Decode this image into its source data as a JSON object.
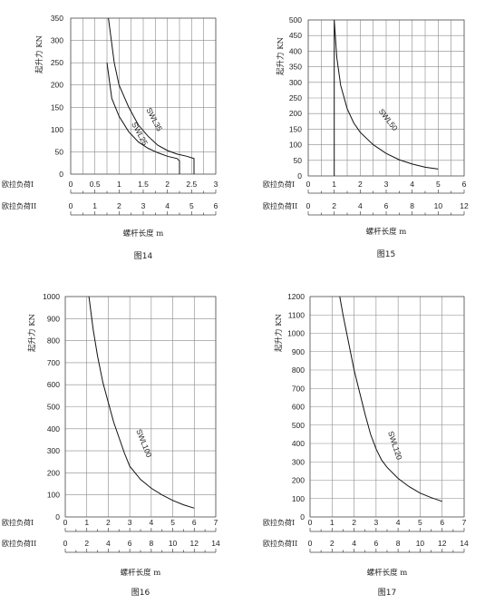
{
  "chart_data": [
    {
      "type": "line",
      "caption": "图14",
      "ylabel": "起升力 KN",
      "xlabel": "螺杆长度  m",
      "axis1_label": "欧拉负荷I",
      "axis2_label": "欧拉负荷II",
      "ylim": [
        0,
        350
      ],
      "yticks": [
        "0",
        "50",
        "100",
        "150",
        "200",
        "250",
        "300",
        "350"
      ],
      "xlim": [
        0,
        3
      ],
      "axis1_ticks": [
        "0",
        "0.5",
        "1",
        "1.5",
        "2",
        "2.5",
        "3"
      ],
      "axis2_ticks": [
        "0",
        "1",
        "2",
        "3",
        "4",
        "5",
        "6"
      ],
      "grid": true,
      "series": [
        {
          "name": "SWL25",
          "x": [
            0.75,
            0.85,
            1.0,
            1.2,
            1.4,
            1.6,
            1.8,
            2.0,
            2.2,
            2.25,
            2.25
          ],
          "y": [
            250,
            170,
            130,
            95,
            72,
            58,
            48,
            40,
            35,
            30,
            0
          ]
        },
        {
          "name": "SWL35",
          "x": [
            0.78,
            0.9,
            1.0,
            1.2,
            1.4,
            1.6,
            1.8,
            2.0,
            2.2,
            2.4,
            2.55,
            2.55
          ],
          "y": [
            350,
            250,
            200,
            150,
            110,
            85,
            65,
            53,
            45,
            40,
            35,
            0
          ]
        }
      ]
    },
    {
      "type": "line",
      "caption": "图15",
      "ylabel": "起升力 KN",
      "xlabel": "螺杆长度  m",
      "axis1_label": "欧拉负荷I",
      "axis2_label": "欧拉负荷II",
      "ylim": [
        0,
        500
      ],
      "yticks": [
        "0",
        "50",
        "100",
        "150",
        "200",
        "250",
        "300",
        "350",
        "400",
        "450",
        "500"
      ],
      "xlim": [
        0,
        6
      ],
      "axis1_ticks": [
        "0",
        "1",
        "2",
        "3",
        "4",
        "5",
        "6"
      ],
      "axis2_ticks": [
        "0",
        "2",
        "4",
        "6",
        "8",
        "10",
        "12"
      ],
      "grid": true,
      "series": [
        {
          "name": "SWL50",
          "x": [
            1.0,
            1.0,
            1.1,
            1.25,
            1.5,
            1.75,
            2.0,
            2.5,
            3.0,
            3.5,
            4.0,
            4.5,
            5.0
          ],
          "y": [
            0,
            500,
            380,
            290,
            215,
            170,
            140,
            100,
            72,
            52,
            38,
            28,
            22
          ]
        }
      ]
    },
    {
      "type": "line",
      "caption": "图16",
      "ylabel": "起升力 KN",
      "xlabel": "螺杆长度  m",
      "axis1_label": "欧拉负荷I",
      "axis2_label": "欧拉负荷II",
      "ylim": [
        0,
        1000
      ],
      "yticks": [
        "0",
        "100",
        "200",
        "300",
        "400",
        "500",
        "600",
        "700",
        "800",
        "900",
        "1000"
      ],
      "xlim": [
        0,
        7
      ],
      "axis1_ticks": [
        "0",
        "1",
        "2",
        "3",
        "4",
        "5",
        "6",
        "7"
      ],
      "axis2_ticks": [
        "0",
        "2",
        "4",
        "6",
        "8",
        "10",
        "12",
        "14"
      ],
      "grid": true,
      "series": [
        {
          "name": "SWL100",
          "x": [
            1.1,
            1.3,
            1.5,
            1.75,
            2.0,
            2.25,
            2.5,
            2.75,
            3.0,
            3.5,
            4.0,
            4.5,
            5.0,
            5.5,
            6.0
          ],
          "y": [
            1000,
            850,
            730,
            610,
            520,
            430,
            360,
            290,
            230,
            170,
            130,
            100,
            75,
            55,
            40
          ]
        }
      ]
    },
    {
      "type": "line",
      "caption": "图17",
      "ylabel": "起升力 KN",
      "xlabel": "螺杆长度  m",
      "axis1_label": "欧拉负荷I",
      "axis2_label": "欧拉负荷II",
      "ylim": [
        0,
        1200
      ],
      "yticks": [
        "0",
        "100",
        "200",
        "300",
        "400",
        "500",
        "600",
        "700",
        "800",
        "900",
        "1000",
        "1100",
        "1200"
      ],
      "xlim": [
        0,
        7
      ],
      "axis1_ticks": [
        "0",
        "1",
        "2",
        "3",
        "4",
        "5",
        "6",
        "7"
      ],
      "axis2_ticks": [
        "0",
        "2",
        "4",
        "6",
        "8",
        "10",
        "12",
        "14"
      ],
      "grid": true,
      "series": [
        {
          "name": "SWL120",
          "x": [
            1.35,
            1.5,
            1.75,
            2.0,
            2.25,
            2.5,
            2.75,
            3.0,
            3.25,
            3.5,
            4.0,
            4.5,
            5.0,
            5.5,
            6.0
          ],
          "y": [
            1200,
            1100,
            950,
            800,
            680,
            560,
            450,
            370,
            310,
            270,
            210,
            165,
            130,
            105,
            85
          ]
        }
      ]
    }
  ]
}
